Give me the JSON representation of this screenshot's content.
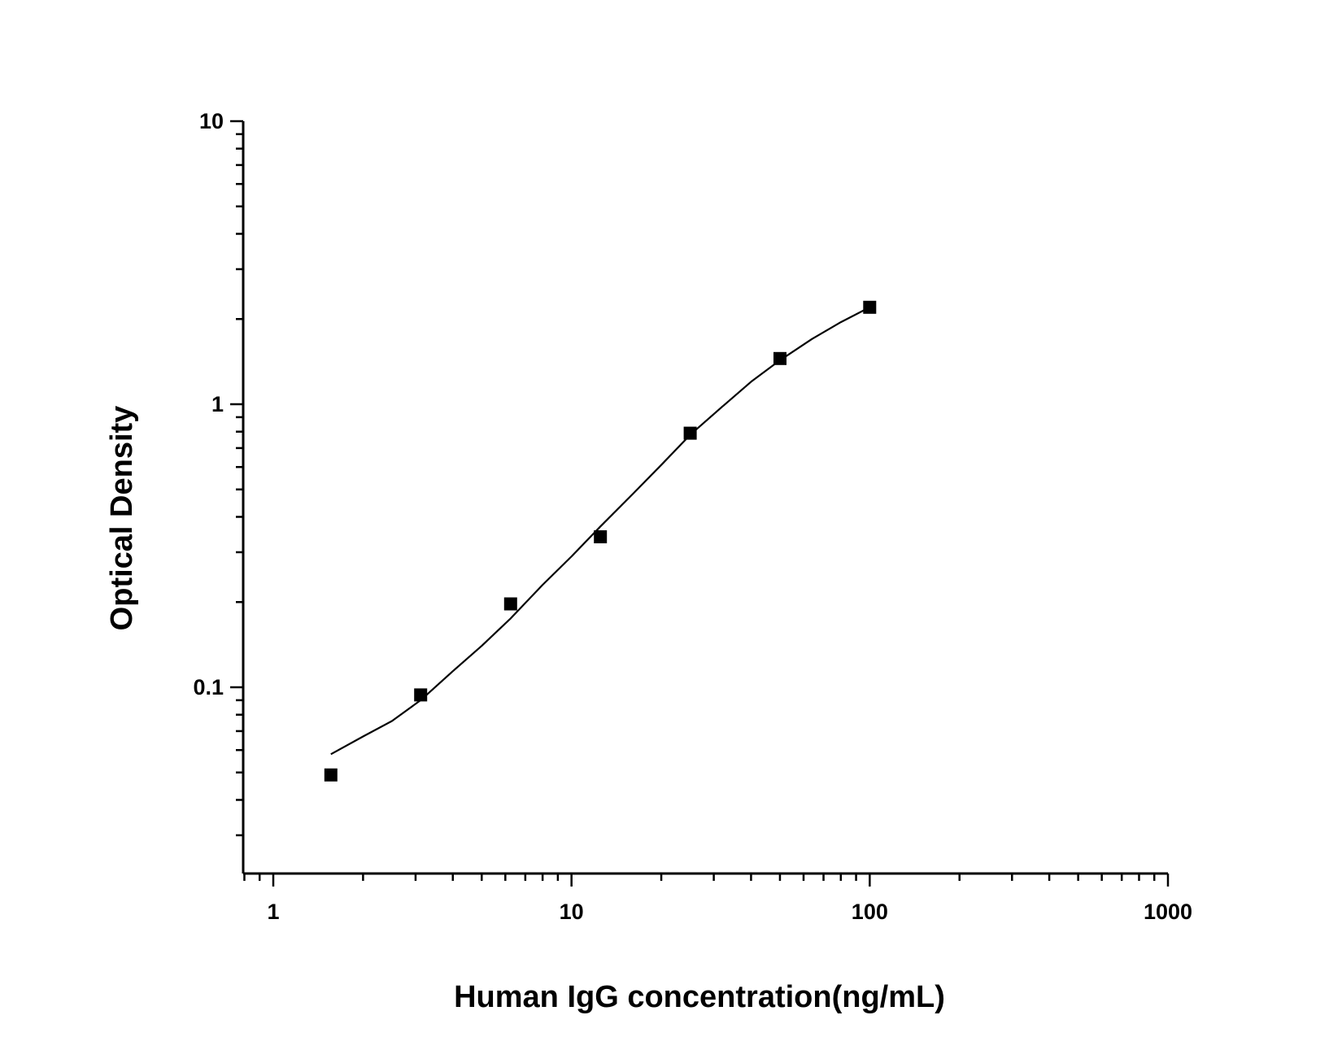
{
  "chart_data": {
    "type": "scatter",
    "title": "",
    "xlabel": "Human IgG concentration(ng/mL)",
    "ylabel": "Optical Density",
    "x_scale": "log",
    "y_scale": "log",
    "xlim": [
      0.8,
      1000
    ],
    "ylim": [
      0.025,
      10
    ],
    "x_ticks": [
      {
        "value": 1,
        "label": "1"
      },
      {
        "value": 10,
        "label": "10"
      },
      {
        "value": 100,
        "label": "100"
      },
      {
        "value": 1000,
        "label": "1000"
      }
    ],
    "y_ticks": [
      {
        "value": 0.1,
        "label": "0.1"
      },
      {
        "value": 1,
        "label": "1"
      },
      {
        "value": 10,
        "label": "10"
      }
    ],
    "grid": false,
    "legend": "none",
    "series": [
      {
        "marker": "square",
        "color": "#000000",
        "x": [
          1.56,
          3.12,
          6.25,
          12.5,
          25,
          50,
          100
        ],
        "y": [
          0.049,
          0.094,
          0.197,
          0.34,
          0.79,
          1.45,
          2.2
        ]
      }
    ],
    "fit_curve": {
      "type": "line",
      "color": "#000000",
      "x": [
        1.56,
        2,
        2.5,
        3.12,
        4,
        5,
        6.25,
        8,
        10,
        12.5,
        16,
        20,
        25,
        32,
        40,
        50,
        64,
        80,
        100
      ],
      "y": [
        0.058,
        0.067,
        0.076,
        0.09,
        0.114,
        0.14,
        0.175,
        0.23,
        0.29,
        0.37,
        0.48,
        0.61,
        0.78,
        0.98,
        1.2,
        1.43,
        1.7,
        1.95,
        2.2
      ]
    }
  }
}
